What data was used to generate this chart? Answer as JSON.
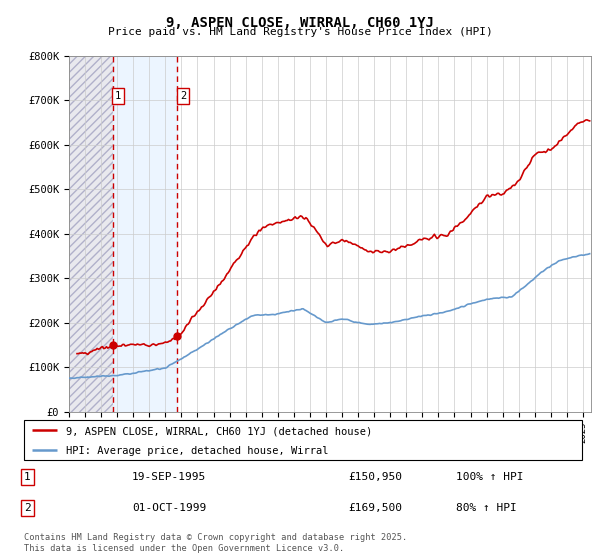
{
  "title": "9, ASPEN CLOSE, WIRRAL, CH60 1YJ",
  "subtitle": "Price paid vs. HM Land Registry's House Price Index (HPI)",
  "ylim": [
    0,
    800000
  ],
  "xlim_start": 1993,
  "xlim_end": 2025.5,
  "hpi_color": "#6699cc",
  "price_color": "#cc0000",
  "sale1_year": 1995.72,
  "sale1_price": 150950,
  "sale2_year": 1999.75,
  "sale2_price": 169500,
  "legend_label1": "9, ASPEN CLOSE, WIRRAL, CH60 1YJ (detached house)",
  "legend_label2": "HPI: Average price, detached house, Wirral",
  "sale1_label": "19-SEP-1995",
  "sale1_amount": "£150,950",
  "sale1_pct": "100% ↑ HPI",
  "sale2_label": "01-OCT-1999",
  "sale2_amount": "£169,500",
  "sale2_pct": "80% ↑ HPI",
  "footer": "Contains HM Land Registry data © Crown copyright and database right 2025.\nThis data is licensed under the Open Government Licence v3.0."
}
